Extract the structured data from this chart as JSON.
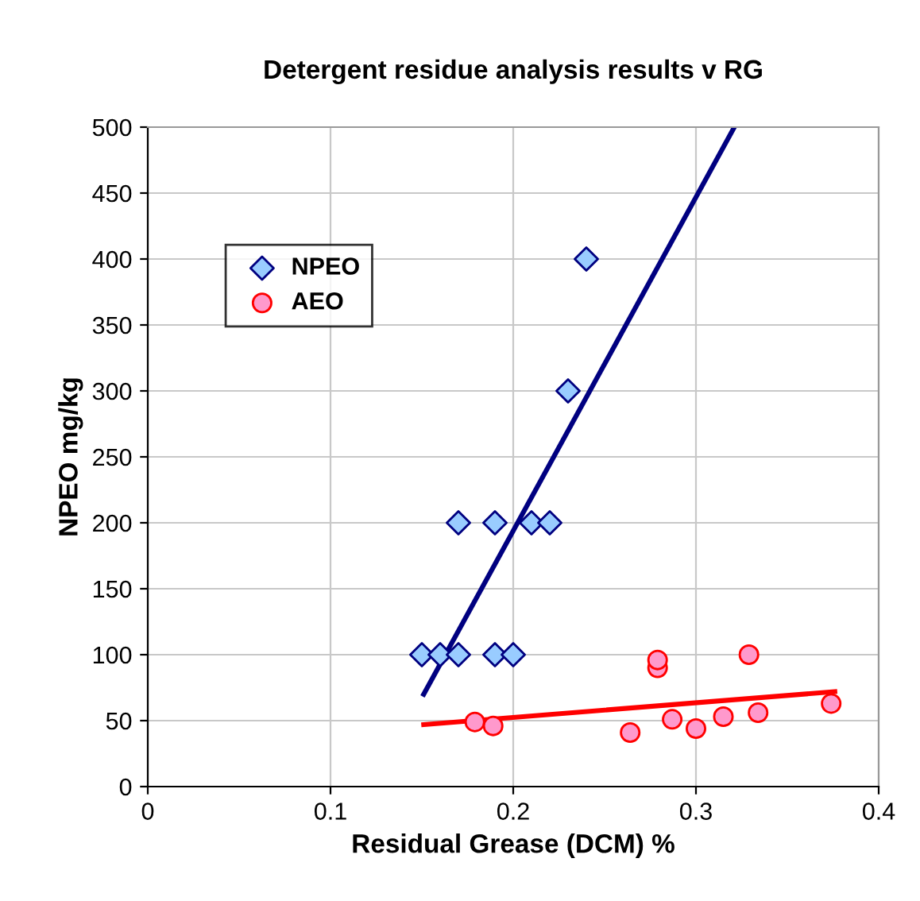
{
  "chart_data": {
    "type": "scatter",
    "title": "Detergent residue analysis results v RG",
    "xlabel": "Residual Grease (DCM) %",
    "ylabel": "NPEO mg/kg",
    "xlim": [
      0,
      0.4
    ],
    "xticks": [
      0,
      0.1,
      0.2,
      0.3,
      0.4
    ],
    "ylim": [
      0,
      500
    ],
    "yticks": [
      0,
      50,
      100,
      150,
      200,
      250,
      300,
      350,
      400,
      450,
      500
    ],
    "grid": true,
    "legend": "top left",
    "series": [
      {
        "name": "NPEO",
        "marker": "diamond",
        "color": "#99ccff",
        "x": [
          0.15,
          0.16,
          0.17,
          0.19,
          0.2,
          0.17,
          0.19,
          0.21,
          0.22,
          0.23,
          0.24
        ],
        "values": [
          100,
          100,
          100,
          100,
          100,
          200,
          200,
          200,
          200,
          300,
          400
        ]
      },
      {
        "name": "AEO",
        "marker": "circle",
        "color": "#ff99cc",
        "x": [
          0.179,
          0.189,
          0.264,
          0.279,
          0.279,
          0.287,
          0.3,
          0.315,
          0.329,
          0.334,
          0.374
        ],
        "values": [
          49,
          46,
          41,
          90,
          96,
          51,
          44,
          53,
          100,
          56,
          63
        ]
      },
      {
        "type": "line",
        "color": "#000080",
        "x": [
          0.151,
          0.321
        ],
        "values": [
          70,
          500
        ]
      },
      {
        "type": "line",
        "color": "#ff0000",
        "x": [
          0.151,
          0.376
        ],
        "values": [
          47,
          72
        ]
      }
    ]
  }
}
